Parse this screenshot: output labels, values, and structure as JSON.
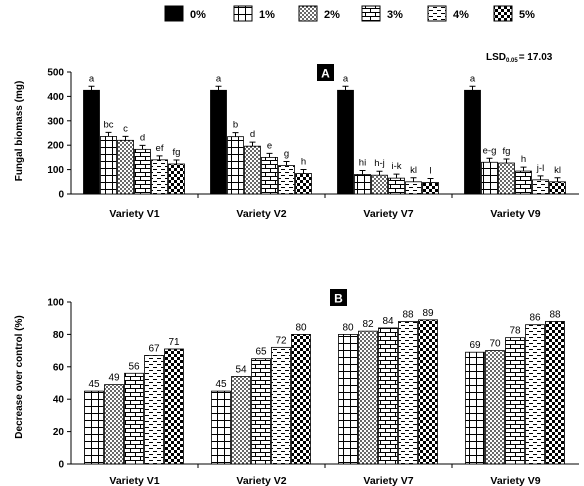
{
  "legend": [
    {
      "label": "0%",
      "pattern": "solid"
    },
    {
      "label": "1%",
      "pattern": "grid"
    },
    {
      "label": "2%",
      "pattern": "dots"
    },
    {
      "label": "3%",
      "pattern": "brick"
    },
    {
      "label": "4%",
      "pattern": "dash"
    },
    {
      "label": "5%",
      "pattern": "checker"
    }
  ],
  "chart_data": [
    {
      "type": "bar",
      "panel": "A",
      "lsd": "LSD0.05 = 17.03",
      "lsd_main": "LSD",
      "lsd_sub": "0.05",
      "lsd_value": "= 17.03",
      "ylabel": "Fungal biomass (mg)",
      "ylim": [
        0,
        500
      ],
      "yticks": [
        0,
        100,
        200,
        300,
        400,
        500
      ],
      "categories": [
        "Variety V1",
        "Variety V2",
        "Variety V7",
        "Variety V9"
      ],
      "series": [
        {
          "name": "0%",
          "values": [
            425,
            425,
            425,
            425
          ],
          "labels": [
            "a",
            "a",
            "a",
            "a"
          ]
        },
        {
          "name": "1%",
          "values": [
            236,
            235,
            80,
            130
          ],
          "labels": [
            "bc",
            "b",
            "hi",
            "e-g"
          ]
        },
        {
          "name": "2%",
          "values": [
            220,
            196,
            77,
            127
          ],
          "labels": [
            "c",
            "d",
            "h-j",
            "fg"
          ]
        },
        {
          "name": "3%",
          "values": [
            183,
            150,
            65,
            94
          ],
          "labels": [
            "d",
            "e",
            "i-k",
            "h"
          ]
        },
        {
          "name": "4%",
          "values": [
            140,
            117,
            50,
            58
          ],
          "labels": [
            "ef",
            "g",
            "kl",
            "j-l"
          ]
        },
        {
          "name": "5%",
          "values": [
            123,
            84,
            47,
            50
          ],
          "labels": [
            "fg",
            "h",
            "l",
            "kl"
          ]
        }
      ]
    },
    {
      "type": "bar",
      "panel": "B",
      "ylabel": "Decrease over control (%)",
      "ylim": [
        0,
        100
      ],
      "yticks": [
        0,
        20,
        40,
        60,
        80,
        100
      ],
      "categories": [
        "Variety V1",
        "Variety V2",
        "Variety V7",
        "Variety V9"
      ],
      "series": [
        {
          "name": "1%",
          "values": [
            45,
            45,
            80,
            69
          ]
        },
        {
          "name": "2%",
          "values": [
            49,
            54,
            82,
            70
          ]
        },
        {
          "name": "3%",
          "values": [
            56,
            65,
            84,
            78
          ]
        },
        {
          "name": "4%",
          "values": [
            67,
            72,
            88,
            86
          ]
        },
        {
          "name": "5%",
          "values": [
            71,
            80,
            89,
            88
          ]
        }
      ]
    }
  ]
}
